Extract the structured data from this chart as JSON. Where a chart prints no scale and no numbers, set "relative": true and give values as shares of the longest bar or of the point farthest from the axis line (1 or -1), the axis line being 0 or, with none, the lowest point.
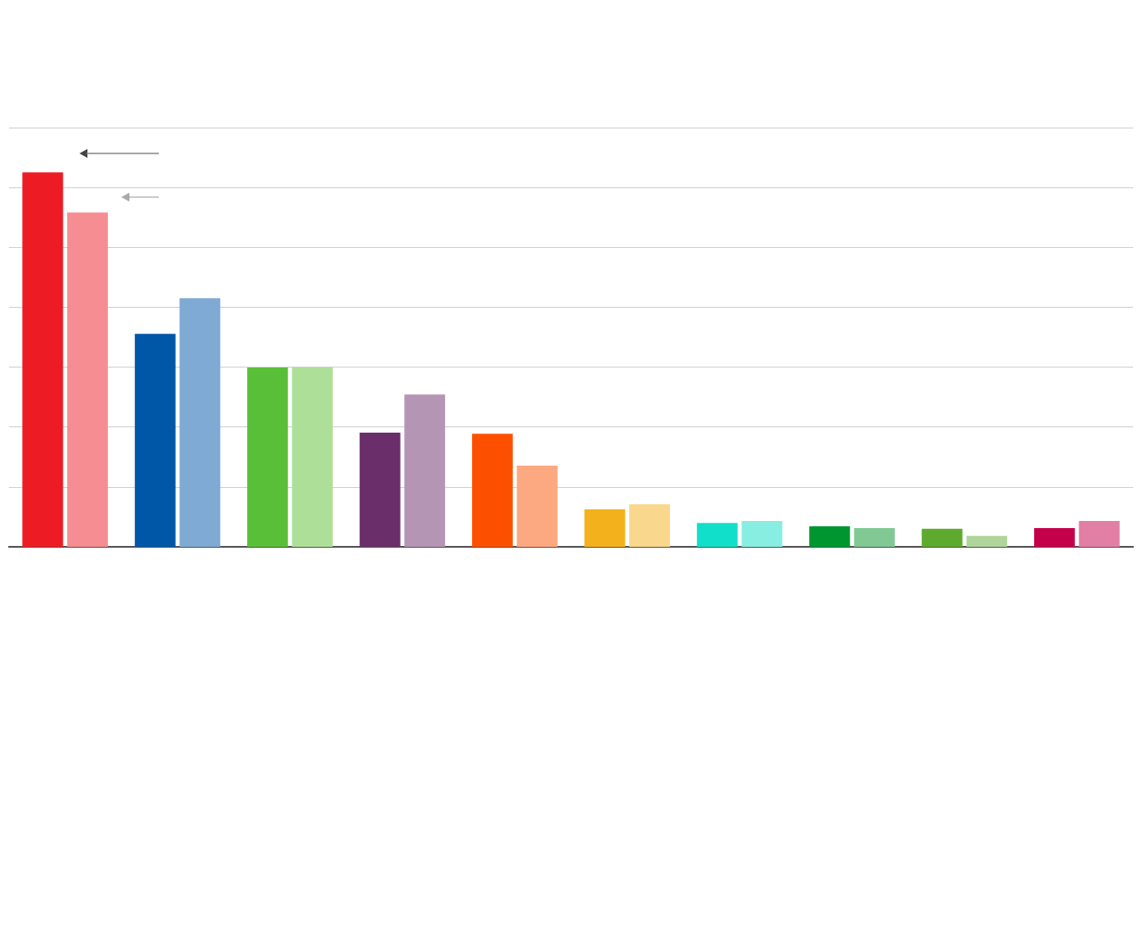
{
  "chart_data": {
    "type": "bar",
    "relative": true,
    "grid": "y",
    "categories": [
      null,
      null,
      null,
      null,
      null,
      null,
      null,
      null,
      null,
      null
    ],
    "series": [
      {
        "colors": [
          "#ed1c24",
          "#0056a7",
          "#5abf38",
          "#6a2f6a",
          "#fc5000",
          "#f3b21b",
          "#12dfc9",
          "#00962f",
          "#5daa2f",
          "#c5004a"
        ],
        "values": [
          1,
          0.569,
          0.479,
          0.305,
          0.302,
          0.1,
          0.064,
          0.055,
          0.048,
          0.05
        ]
      },
      {
        "colors": [
          "#f58d92",
          "#7faad4",
          "#aedf98",
          "#b595b4",
          "#fca880",
          "#f9d78c",
          "#89eee2",
          "#80c994",
          "#afd59a",
          "#e27fa4"
        ],
        "values": [
          0.893,
          0.664,
          0.479,
          0.407,
          0.217,
          0.114,
          0.069,
          0.05,
          0.029,
          0.069
        ]
      }
    ]
  }
}
